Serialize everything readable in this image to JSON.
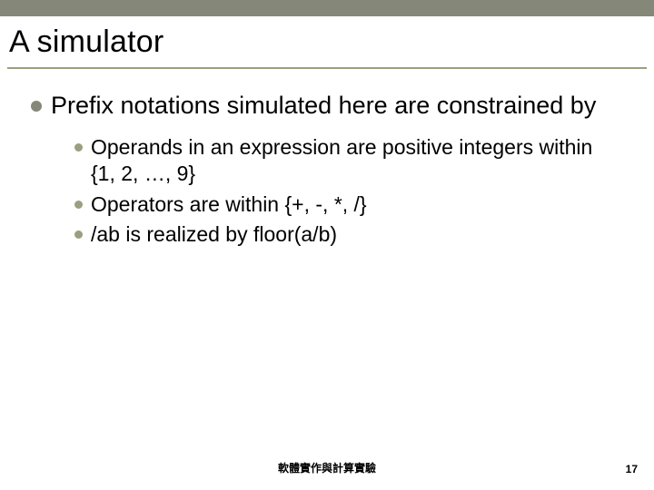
{
  "colors": {
    "top_strip": "#858778",
    "title_underline": "#9aa07f",
    "lvl1_bullet": "#858778",
    "lvl2_bullet": "#9aa07f",
    "text": "#000000",
    "background": "#ffffff"
  },
  "title": "A simulator",
  "body": {
    "lvl1": "Prefix notations simulated here are constrained by",
    "lvl2": [
      "Operands in an expression are positive integers within {1, 2, …, 9}",
      "Operators are within {+, -, *, /}",
      "/ab is realized by floor(a/b)"
    ]
  },
  "footer": {
    "center": "軟體實作與計算實驗",
    "page": "17"
  },
  "typography": {
    "title_fontsize": 34,
    "lvl1_fontsize": 27,
    "lvl2_fontsize": 23,
    "footer_fontsize": 12
  }
}
